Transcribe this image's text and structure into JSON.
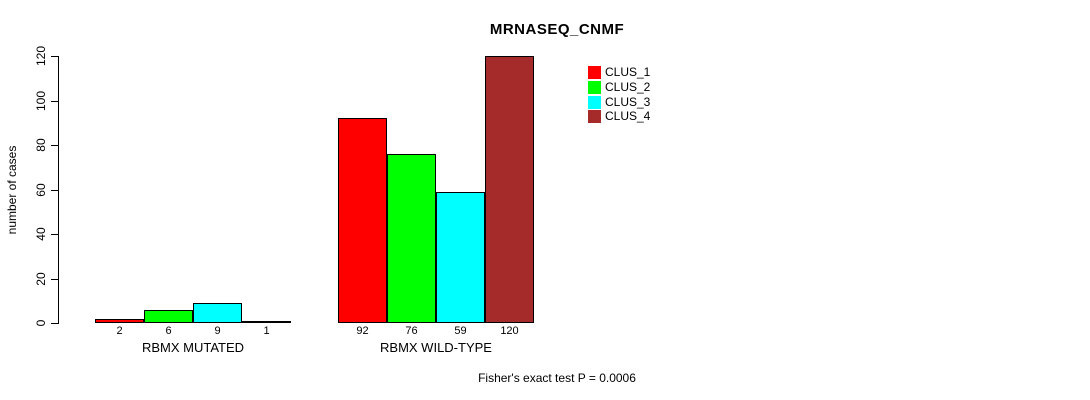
{
  "title": "MRNASEQ_CNMF",
  "chart_data": {
    "type": "bar",
    "title": "MRNASEQ_CNMF",
    "xlabel": "",
    "ylabel": "number of cases",
    "ylim": [
      0,
      120
    ],
    "yticks": [
      0,
      20,
      40,
      60,
      80,
      100,
      120
    ],
    "grid": false,
    "legend_position": "top-right",
    "categories": [
      "RBMX MUTATED",
      "RBMX WILD-TYPE"
    ],
    "groups": [
      {
        "label": "RBMX MUTATED",
        "values": [
          2,
          6,
          9,
          1
        ]
      },
      {
        "label": "RBMX WILD-TYPE",
        "values": [
          92,
          76,
          59,
          120
        ]
      }
    ],
    "series": [
      {
        "name": "CLUS_1",
        "color": "#FF0000"
      },
      {
        "name": "CLUS_2",
        "color": "#00FF00"
      },
      {
        "name": "CLUS_3",
        "color": "#00FFFF"
      },
      {
        "name": "CLUS_4",
        "color": "#A52A2A"
      }
    ],
    "bar_border_color": "#000000",
    "show_values_under_bars": true,
    "annotation": "Fisher's exact test P = 0.0006"
  }
}
